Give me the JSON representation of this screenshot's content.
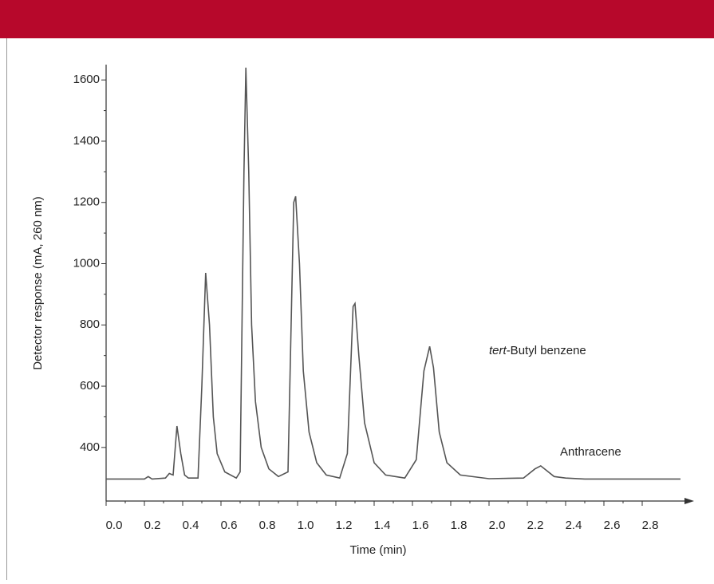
{
  "chart_data": {
    "type": "line",
    "x_label": "Time (min)",
    "y_label": "Detector response (mA, 260 nm)",
    "color": "#555555",
    "x": [
      0.0,
      0.2,
      0.22,
      0.24,
      0.31,
      0.33,
      0.35,
      0.37,
      0.39,
      0.41,
      0.43,
      0.48,
      0.5,
      0.52,
      0.54,
      0.56,
      0.58,
      0.62,
      0.68,
      0.7,
      0.72,
      0.73,
      0.745,
      0.76,
      0.78,
      0.81,
      0.85,
      0.9,
      0.95,
      0.98,
      0.99,
      1.01,
      1.03,
      1.06,
      1.1,
      1.15,
      1.22,
      1.26,
      1.29,
      1.3,
      1.32,
      1.35,
      1.4,
      1.46,
      1.56,
      1.62,
      1.66,
      1.69,
      1.71,
      1.74,
      1.78,
      1.85,
      2.0,
      2.18,
      2.24,
      2.27,
      2.3,
      2.34,
      2.4,
      2.5,
      3.0
    ],
    "values": [
      297,
      297,
      305,
      297,
      300,
      315,
      310,
      470,
      380,
      310,
      300,
      300,
      600,
      970,
      800,
      500,
      380,
      320,
      300,
      320,
      1300,
      1640,
      1300,
      800,
      550,
      400,
      330,
      305,
      320,
      1200,
      1220,
      1000,
      650,
      450,
      350,
      310,
      300,
      380,
      860,
      870,
      700,
      480,
      350,
      310,
      300,
      360,
      650,
      730,
      660,
      450,
      350,
      310,
      298,
      300,
      330,
      340,
      325,
      305,
      300,
      297,
      297
    ],
    "xlim": [
      0,
      3.0
    ],
    "ylim": [
      225,
      1650
    ],
    "xticks": [
      {
        "value": 0,
        "label": "0.0"
      },
      0.2,
      0.4,
      0.6,
      0.8,
      {
        "value": 1,
        "label": "1.0"
      },
      1.2,
      1.4,
      1.6,
      1.8,
      {
        "value": 2,
        "label": "2.0"
      },
      2.2,
      2.4,
      2.6,
      2.8
    ],
    "yticks": [
      400,
      600,
      800,
      1000,
      1200,
      1400,
      1600
    ],
    "annotations": [
      {
        "italic": "tert",
        "text": "-Butyl benzene"
      },
      {
        "text": "Anthracene"
      }
    ]
  }
}
